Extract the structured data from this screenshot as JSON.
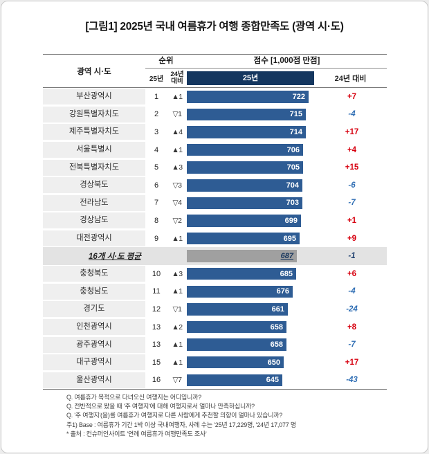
{
  "title": "[그림1] 2025년 국내 여름휴가 여행 종합만족도 (광역 시·도)",
  "header": {
    "region": "광역 시·도",
    "rank": "순위",
    "rank_25": "25년",
    "rank_24": "24년\n대비",
    "score": "점수 [1,000점 만점]",
    "score_25": "25년",
    "score_24": "24년 대비"
  },
  "colors": {
    "bar": "#2e5c94",
    "header_navy": "#15375f",
    "average_bar": "#a0a0a0",
    "average_text": "#17365d",
    "positive": "#d7000f",
    "negative": "#2f6eb4",
    "average_diff": "#1c3e6d"
  },
  "chart_data": {
    "type": "bar",
    "title": "[그림1] 2025년 국내 여름휴가 여행 종합만족도 (광역 시·도)",
    "xlabel": "점수 [1,000점 만점]",
    "xlim": [
      376,
      760
    ],
    "legend_position": "none",
    "grid": false,
    "rows": [
      {
        "region": "부산광역시",
        "rank": "1",
        "rank_change": "▲1",
        "score": 722,
        "score_change": "+7"
      },
      {
        "region": "강원특별자치도",
        "rank": "2",
        "rank_change": "▽1",
        "score": 715,
        "score_change": "-4"
      },
      {
        "region": "제주특별자치도",
        "rank": "3",
        "rank_change": "▲4",
        "score": 714,
        "score_change": "+17"
      },
      {
        "region": "서울특별시",
        "rank": "4",
        "rank_change": "▲1",
        "score": 706,
        "score_change": "+4"
      },
      {
        "region": "전북특별자치도",
        "rank": "5",
        "rank_change": "▲3",
        "score": 705,
        "score_change": "+15"
      },
      {
        "region": "경상북도",
        "rank": "6",
        "rank_change": "▽3",
        "score": 704,
        "score_change": "-6"
      },
      {
        "region": "전라남도",
        "rank": "7",
        "rank_change": "▽4",
        "score": 703,
        "score_change": "-7"
      },
      {
        "region": "경상남도",
        "rank": "8",
        "rank_change": "▽2",
        "score": 699,
        "score_change": "+1"
      },
      {
        "region": "대전광역시",
        "rank": "9",
        "rank_change": "▲1",
        "score": 695,
        "score_change": "+9"
      },
      {
        "region": "충청북도",
        "rank": "10",
        "rank_change": "▲3",
        "score": 685,
        "score_change": "+6"
      },
      {
        "region": "충청남도",
        "rank": "11",
        "rank_change": "▲1",
        "score": 676,
        "score_change": "-4"
      },
      {
        "region": "경기도",
        "rank": "12",
        "rank_change": "▽1",
        "score": 661,
        "score_change": "-24"
      },
      {
        "region": "인천광역시",
        "rank": "13",
        "rank_change": "▲2",
        "score": 658,
        "score_change": "+8"
      },
      {
        "region": "광주광역시",
        "rank": "13",
        "rank_change": "▲1",
        "score": 658,
        "score_change": "-7"
      },
      {
        "region": "대구광역시",
        "rank": "15",
        "rank_change": "▲1",
        "score": 650,
        "score_change": "+17"
      },
      {
        "region": "울산광역시",
        "rank": "16",
        "rank_change": "▽7",
        "score": 645,
        "score_change": "-43"
      }
    ],
    "average": {
      "label": "16개 시·도 평균",
      "score": 687,
      "score_change": "-1",
      "insert_after_row": 9
    }
  },
  "footnotes": [
    "Q. 여름휴가 목적으로 다녀오신 여행지는 어디입니까?",
    "Q. 전반적으로 봤을 때 '주 여행지'에 대해 여행지로서 얼마나 만족하십니까?",
    "Q. '주 여행지'(을)를 여름휴가 여행지로 다른 사람에게 추천할 의향이 얼마나 있습니까?",
    "주1) Base : 여름휴가 기간 1박 이상 국내여행자, 사례 수는 '25년 17,229명, '24년 17,077 명",
    "* 출처 : 컨슈머인사이트 '연례 여름휴가 여행만족도 조사'"
  ]
}
